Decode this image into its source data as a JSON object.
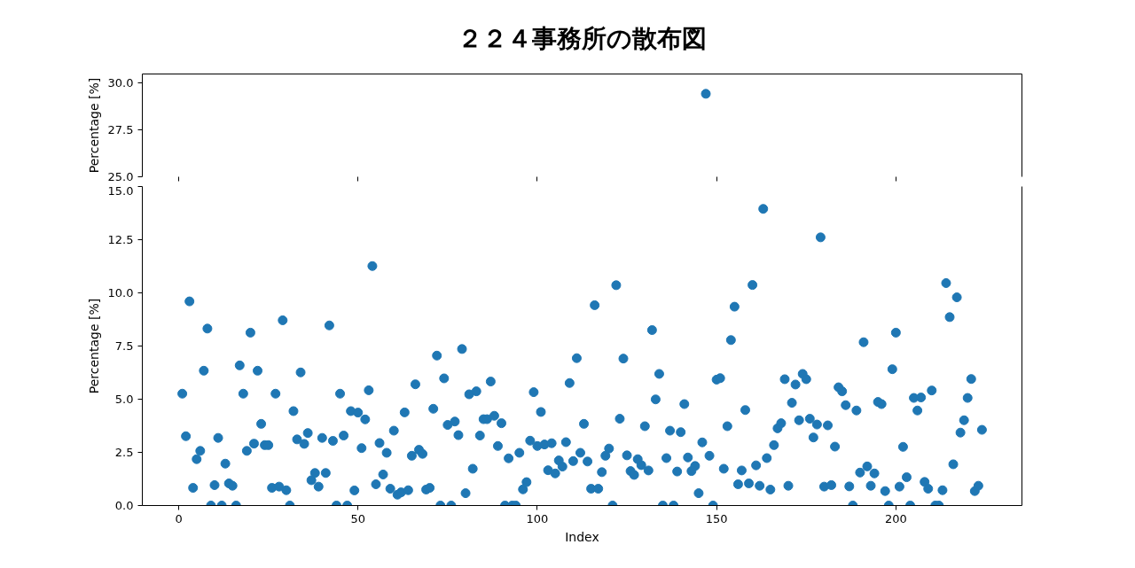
{
  "chart_data": [
    {
      "type": "scatter",
      "title": "２２４事務所の散布図",
      "ylabel": "Percentage [%]",
      "x": [
        147
      ],
      "values": [
        29.4
      ],
      "color": "#1f77b4",
      "marker": "circle",
      "xlim": [
        -10.15,
        235.15
      ],
      "xticks": [
        0,
        50,
        100,
        150,
        200
      ],
      "ylim": [
        25,
        30.45
      ],
      "yticks": [
        {
          "value": 25,
          "label": "25.0"
        },
        {
          "value": 27.5,
          "label": "27.5"
        },
        {
          "value": 30,
          "label": "30.0"
        }
      ],
      "tick_labels": "y"
    },
    {
      "type": "scatter",
      "xlabel": "Index",
      "ylabel": "Percentage [%]",
      "color": "#1f77b4",
      "marker": "circle",
      "xlim": [
        -10.15,
        235.15
      ],
      "xticks": [
        0,
        50,
        100,
        150,
        200
      ],
      "ylim": [
        0,
        15
      ],
      "yticks": [
        {
          "value": 0,
          "label": "0.0"
        },
        {
          "value": 2.5,
          "label": "2.5"
        },
        {
          "value": 5,
          "label": "5.0"
        },
        {
          "value": 7.5,
          "label": "7.5"
        },
        {
          "value": 10,
          "label": "10.0"
        },
        {
          "value": 12.5,
          "label": "12.5"
        },
        {
          "value": 15,
          "label": "15.0"
        }
      ],
      "x": [
        1,
        2,
        3,
        4,
        5,
        6,
        7,
        8,
        9,
        10,
        11,
        12,
        13,
        14,
        15,
        16,
        17,
        18,
        19,
        20,
        21,
        22,
        23,
        24,
        25,
        26,
        27,
        28,
        29,
        30,
        31,
        32,
        33,
        34,
        35,
        36,
        37,
        38,
        39,
        40,
        41,
        42,
        43,
        44,
        45,
        46,
        47,
        48,
        49,
        50,
        51,
        52,
        53,
        54,
        55,
        56,
        57,
        58,
        59,
        60,
        61,
        62,
        63,
        64,
        65,
        66,
        67,
        68,
        69,
        70,
        71,
        72,
        73,
        74,
        75,
        76,
        77,
        78,
        79,
        80,
        81,
        82,
        83,
        84,
        85,
        86,
        87,
        88,
        89,
        90,
        91,
        92,
        93,
        94,
        95,
        96,
        97,
        98,
        99,
        100,
        101,
        102,
        103,
        104,
        105,
        106,
        107,
        108,
        109,
        110,
        111,
        112,
        113,
        114,
        115,
        116,
        117,
        118,
        119,
        120,
        121,
        122,
        123,
        124,
        125,
        126,
        127,
        128,
        129,
        130,
        131,
        132,
        133,
        134,
        135,
        136,
        137,
        138,
        139,
        140,
        141,
        142,
        143,
        144,
        145,
        146,
        147,
        148,
        149,
        150,
        151,
        152,
        153,
        154,
        155,
        156,
        157,
        158,
        159,
        160,
        161,
        162,
        163,
        164,
        165,
        166,
        167,
        168,
        169,
        170,
        171,
        172,
        173,
        174,
        175,
        176,
        177,
        178,
        179,
        180,
        181,
        182,
        183,
        184,
        185,
        186,
        187,
        188,
        189,
        190,
        191,
        192,
        193,
        194,
        195,
        196,
        197,
        198,
        199,
        200,
        201,
        202,
        203,
        204,
        205,
        206,
        207,
        208,
        209,
        210,
        211,
        212,
        213,
        214,
        215,
        216,
        217,
        218,
        219,
        220,
        221,
        222,
        223,
        224
      ],
      "values": [
        5.26,
        3.26,
        9.6,
        0.83,
        2.18,
        2.57,
        6.34,
        8.32,
        0,
        0.96,
        3.18,
        0,
        1.97,
        1.04,
        0.93,
        0,
        6.59,
        5.26,
        2.57,
        8.13,
        2.91,
        6.34,
        3.84,
        2.84,
        2.84,
        0.83,
        5.26,
        0.89,
        8.71,
        0.72,
        0,
        4.44,
        3.11,
        6.26,
        2.9,
        3.41,
        1.19,
        1.53,
        0.89,
        3.18,
        1.53,
        8.47,
        3.04,
        0,
        5.26,
        3.29,
        0,
        4.44,
        0.71,
        4.37,
        2.7,
        4.05,
        5.42,
        11.26,
        1.0,
        2.94,
        1.46,
        2.48,
        0.79,
        3.52,
        0.51,
        0.62,
        4.38,
        0.72,
        2.34,
        5.7,
        2.62,
        2.43,
        0.75,
        0.83,
        4.55,
        7.05,
        0,
        5.98,
        3.79,
        0,
        3.95,
        3.31,
        7.36,
        0.58,
        5.23,
        1.73,
        5.37,
        3.29,
        4.06,
        4.06,
        5.83,
        4.22,
        2.8,
        3.87,
        0,
        2.22,
        0,
        0,
        2.48,
        0.76,
        1.1,
        3.05,
        5.33,
        2.8,
        4.4,
        2.87,
        1.66,
        2.93,
        1.51,
        2.12,
        1.83,
        2.98,
        5.76,
        2.09,
        6.93,
        2.48,
        3.84,
        2.07,
        0.79,
        9.42,
        0.79,
        1.57,
        2.34,
        2.68,
        0,
        10.36,
        4.08,
        6.91,
        2.36,
        1.62,
        1.44,
        2.18,
        1.9,
        3.73,
        1.65,
        8.25,
        4.99,
        6.19,
        0,
        2.23,
        3.52,
        0,
        1.6,
        3.45,
        4.77,
        2.26,
        1.62,
        1.86,
        0.58,
        2.97,
        null,
        2.34,
        0,
        5.92,
        5.99,
        1.73,
        3.73,
        7.78,
        9.35,
        1.0,
        1.65,
        4.49,
        1.04,
        10.37,
        1.89,
        0.93,
        13.95,
        2.23,
        0.75,
        2.84,
        3.63,
        3.87,
        5.94,
        0.93,
        4.83,
        5.69,
        4.01,
        6.19,
        5.94,
        4.08,
        3.2,
        3.81,
        12.61,
        0.89,
        3.77,
        0.96,
        2.77,
        5.56,
        5.37,
        4.72,
        0.9,
        0,
        4.47,
        1.55,
        7.68,
        1.84,
        0.93,
        1.51,
        4.87,
        4.77,
        0.68,
        0,
        6.41,
        8.13,
        0.89,
        2.76,
        1.33,
        0,
        5.06,
        4.47,
        5.08,
        1.11,
        0.79,
        5.41,
        0,
        0,
        0.72,
        10.46,
        8.86,
        1.94,
        9.79,
        3.43,
        4.01,
        5.06,
        5.95,
        0.68,
        0.93,
        3.56
      ]
    }
  ]
}
